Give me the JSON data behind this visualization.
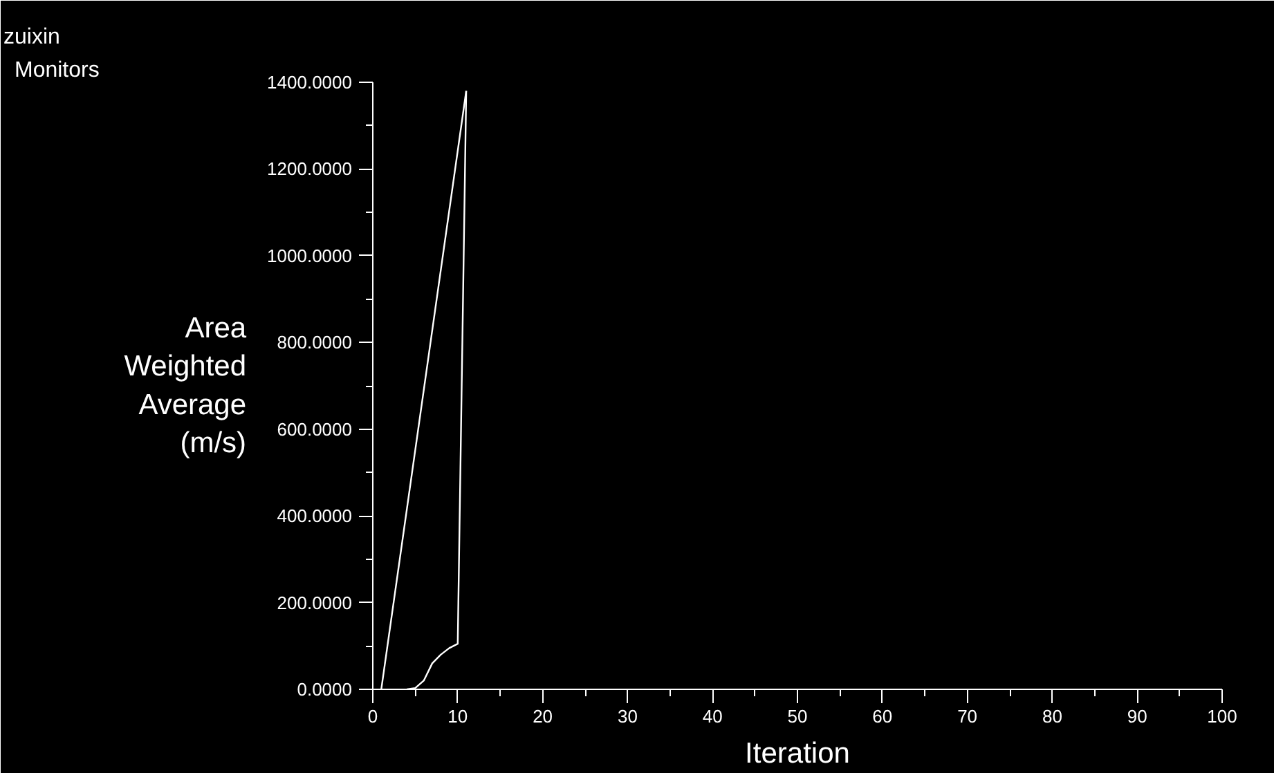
{
  "chart_data": {
    "type": "line",
    "title": "Monitors",
    "subtitle": "zuixin",
    "xlabel": "Iteration",
    "ylabel": "Area Weighted Average (m/s)",
    "series": [
      {
        "color": "#ffffff",
        "x": [
          1,
          11
        ],
        "values": [
          0,
          1380
        ]
      },
      {
        "color": "#ffffff",
        "x": [
          4,
          5,
          6,
          7,
          8,
          9,
          10,
          11
        ],
        "values": [
          0,
          3,
          20,
          60,
          80,
          95,
          105,
          1380
        ]
      }
    ],
    "xlim": [
      0,
      100
    ],
    "ylim": [
      0,
      1400
    ],
    "xticks": [
      0,
      {
        "value": 5,
        "label": null
      },
      10,
      {
        "value": 15,
        "label": null
      },
      20,
      {
        "value": 25,
        "label": null
      },
      30,
      {
        "value": 35,
        "label": null
      },
      40,
      {
        "value": 45,
        "label": null
      },
      50,
      {
        "value": 55,
        "label": null
      },
      60,
      {
        "value": 65,
        "label": null
      },
      70,
      {
        "value": 75,
        "label": null
      },
      80,
      {
        "value": 85,
        "label": null
      },
      90,
      {
        "value": 95,
        "label": null
      },
      100
    ],
    "yticks": [
      {
        "value": 0,
        "label": "0.0000"
      },
      {
        "value": 100,
        "label": null
      },
      {
        "value": 200,
        "label": "200.0000"
      },
      {
        "value": 300,
        "label": null
      },
      {
        "value": 400,
        "label": "400.0000"
      },
      {
        "value": 500,
        "label": null
      },
      {
        "value": 600,
        "label": "600.0000"
      },
      {
        "value": 700,
        "label": null
      },
      {
        "value": 800,
        "label": "800.0000"
      },
      {
        "value": 900,
        "label": null
      },
      {
        "value": 1000,
        "label": "1000.0000"
      },
      {
        "value": 1100,
        "label": null
      },
      {
        "value": 1200,
        "label": "1200.0000"
      },
      {
        "value": 1300,
        "label": null
      },
      {
        "value": 1400,
        "label": "1400.0000"
      }
    ],
    "grid": false,
    "marker": "none",
    "line_style": "solid"
  }
}
